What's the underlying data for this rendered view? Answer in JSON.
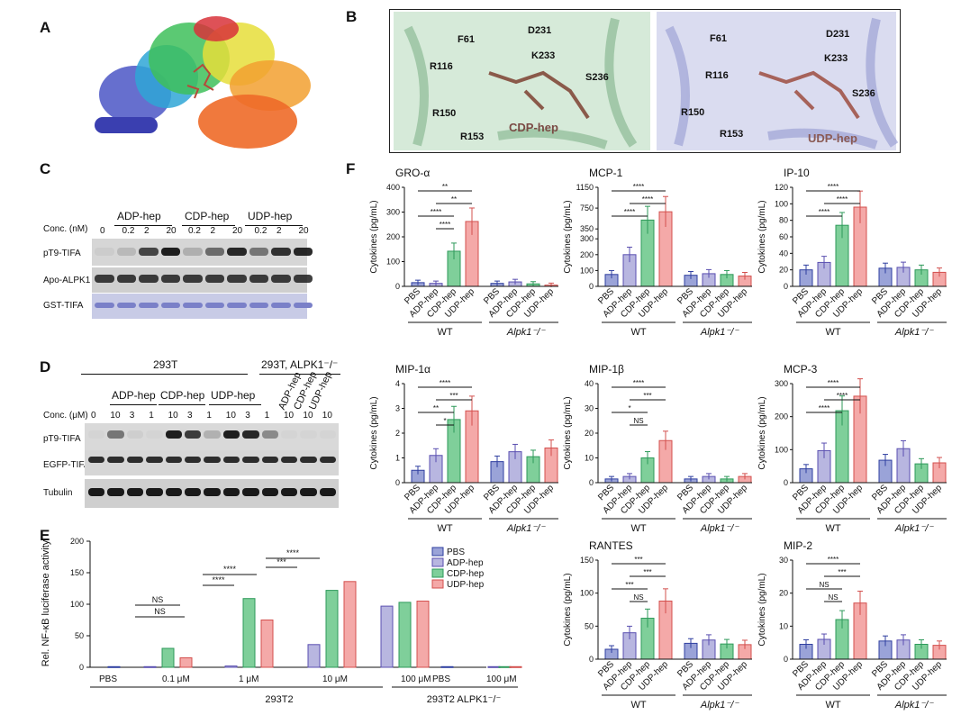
{
  "panel_letters": {
    "a": "A",
    "b": "B",
    "c": "C",
    "d": "D",
    "e": "E",
    "f": "F"
  },
  "panel_b": {
    "left_residues": [
      "F61",
      "D231",
      "K233",
      "R116",
      "S236",
      "R150",
      "R153"
    ],
    "left_ligand": "CDP-hep",
    "right_residues": [
      "F61",
      "D231",
      "R116",
      "K233",
      "S236",
      "R150",
      "R153"
    ],
    "right_ligand": "UDP-hep"
  },
  "panel_c": {
    "groups": [
      "ADP-hep",
      "CDP-hep",
      "UDP-hep"
    ],
    "conc_label": "Conc. (nM)",
    "conc_values": [
      "0",
      "0.2",
      "2",
      "20",
      "0.2",
      "2",
      "20",
      "0.2",
      "2",
      "20"
    ],
    "rows": [
      "pT9-TIFA",
      "Apo-ALPK1",
      "GST-TIFA"
    ]
  },
  "panel_d": {
    "cell_lines": [
      "293T",
      "293T, ALPK1⁻/⁻"
    ],
    "groups": [
      "ADP-hep",
      "CDP-hep",
      "UDP-hep"
    ],
    "ko_groups": [
      "ADP-hep",
      "CDP-hep",
      "UDP-hep"
    ],
    "conc_label": "Conc. (μM)",
    "conc_values": [
      "0",
      "10",
      "3",
      "1",
      "10",
      "3",
      "1",
      "10",
      "3",
      "1",
      "10",
      "10",
      "10"
    ],
    "rows": [
      "pT9-TIFA",
      "EGFP-TIFA",
      "Tubulin"
    ]
  },
  "panel_e": {
    "ylabel": "Rel. NF-κB luciferase activity",
    "legend": [
      "PBS",
      "ADP-hep",
      "CDP-hep",
      "UDP-hep"
    ],
    "xgroups": [
      "PBS",
      "0.1 μM",
      "1 μM",
      "10 μM",
      "100 μM",
      "PBS",
      "100 μM"
    ],
    "cell_lines": [
      "293T2",
      "293T2 ALPK1⁻/⁻"
    ],
    "sig": [
      "NS",
      "NS",
      "****",
      "****",
      "***",
      "****"
    ]
  },
  "colors": {
    "PBS": "#9aa3d8",
    "ADP": "#b8b6e0",
    "CDP": "#7fcf9a",
    "UDP": "#f4a9a8",
    "PBSe": "#2f3fa0",
    "ADPe": "#5a4fb0",
    "CDPe": "#2e9a5a",
    "UDPe": "#d3504e"
  },
  "chart_data": [
    {
      "type": "bar",
      "title": "Rel. NF-κB luciferase activity",
      "panel": "E",
      "series": [
        {
          "name": "PBS",
          "values": [
            1,
            null,
            null,
            null,
            null,
            1,
            null
          ]
        },
        {
          "name": "ADP-hep",
          "values": [
            null,
            1,
            2,
            36,
            97,
            null,
            1
          ]
        },
        {
          "name": "CDP-hep",
          "values": [
            null,
            30,
            109,
            122,
            103,
            null,
            1
          ]
        },
        {
          "name": "UDP-hep",
          "values": [
            null,
            15,
            75,
            136,
            105,
            null,
            1
          ]
        }
      ],
      "categories": [
        "PBS",
        "0.1 μM",
        "1 μM",
        "10 μM",
        "100 μM",
        "PBS",
        "100 μM"
      ],
      "ylim": [
        0,
        200
      ],
      "yticks": [
        0,
        50,
        100,
        150,
        200
      ]
    },
    {
      "type": "bar",
      "panel": "F",
      "title": "GRO-α",
      "ylabel": "Cytokines (pg/mL)",
      "categories": [
        "PBS",
        "ADP-hep",
        "CDP-hep",
        "UDP-hep",
        "PBS",
        "ADP-hep",
        "CDP-hep",
        "UDP-hep"
      ],
      "values": [
        15,
        12,
        142,
        262,
        12,
        18,
        10,
        5
      ],
      "ylim": [
        0,
        400
      ],
      "yticks": [
        0,
        100,
        200,
        300,
        400
      ],
      "groups": [
        "WT",
        "Alpk1⁻/⁻"
      ]
    },
    {
      "type": "bar",
      "panel": "F",
      "title": "MCP-1",
      "ylabel": "Cytokines (pg/mL)",
      "categories": [
        "PBS",
        "ADP-hep",
        "CDP-hep",
        "UDP-hep",
        "PBS",
        "ADP-hep",
        "CDP-hep",
        "UDP-hep"
      ],
      "values": [
        75,
        200,
        520,
        680,
        70,
        80,
        75,
        65
      ],
      "yticks": [
        "0",
        "100",
        "200",
        "300",
        "350",
        "750",
        "1150"
      ],
      "groups": [
        "WT",
        "Alpk1⁻/⁻"
      ]
    },
    {
      "type": "bar",
      "panel": "F",
      "title": "IP-10",
      "ylabel": "Cytokines (pg/mL)",
      "categories": [
        "PBS",
        "ADP-hep",
        "CDP-hep",
        "UDP-hep",
        "PBS",
        "ADP-hep",
        "CDP-hep",
        "UDP-hep"
      ],
      "values": [
        20,
        29,
        74,
        96,
        22,
        23,
        20,
        17
      ],
      "ylim": [
        0,
        120
      ],
      "yticks": [
        0,
        20,
        40,
        60,
        80,
        100,
        120
      ],
      "groups": [
        "WT",
        "Alpk1⁻/⁻"
      ]
    },
    {
      "type": "bar",
      "panel": "F",
      "title": "MIP-1α",
      "ylabel": "Cytokines (pg/mL)",
      "categories": [
        "PBS",
        "ADP-hep",
        "CDP-hep",
        "UDP-hep",
        "PBS",
        "ADP-hep",
        "CDP-hep",
        "UDP-hep"
      ],
      "values": [
        0.5,
        1.1,
        2.55,
        2.9,
        0.85,
        1.25,
        1.05,
        1.4
      ],
      "ylim": [
        0,
        4
      ],
      "yticks": [
        0,
        1,
        2,
        3,
        4
      ],
      "groups": [
        "WT",
        "Alpk1⁻/⁻"
      ]
    },
    {
      "type": "bar",
      "panel": "F",
      "title": "MIP-1β",
      "ylabel": "Cytokines (pg/mL)",
      "categories": [
        "PBS",
        "ADP-hep",
        "CDP-hep",
        "UDP-hep",
        "PBS",
        "ADP-hep",
        "CDP-hep",
        "UDP-hep"
      ],
      "values": [
        1.5,
        2.5,
        10,
        17,
        1.5,
        2.5,
        1.5,
        2.5
      ],
      "ylim": [
        0,
        40
      ],
      "yticks": [
        0,
        10,
        20,
        30,
        40
      ],
      "groups": [
        "WT",
        "Alpk1⁻/⁻"
      ]
    },
    {
      "type": "bar",
      "panel": "F",
      "title": "MCP-3",
      "ylabel": "Cytokines (pg/mL)",
      "categories": [
        "PBS",
        "ADP-hep",
        "CDP-hep",
        "UDP-hep",
        "PBS",
        "ADP-hep",
        "CDP-hep",
        "UDP-hep"
      ],
      "values": [
        42,
        97,
        218,
        262,
        68,
        103,
        57,
        60
      ],
      "ylim": [
        0,
        300
      ],
      "yticks": [
        0,
        100,
        200,
        300
      ],
      "groups": [
        "WT",
        "Alpk1⁻/⁻"
      ]
    },
    {
      "type": "bar",
      "panel": "F",
      "title": "RANTES",
      "ylabel": "Cytokines (pg/mL)",
      "categories": [
        "PBS",
        "ADP-hep",
        "CDP-hep",
        "UDP-hep",
        "PBS",
        "ADP-hep",
        "CDP-hep",
        "UDP-hep"
      ],
      "values": [
        15,
        40,
        62,
        88,
        24,
        29,
        23,
        22
      ],
      "ylim": [
        0,
        150
      ],
      "yticks": [
        0,
        50,
        100,
        150
      ],
      "groups": [
        "WT",
        "Alpk1⁻/⁻"
      ]
    },
    {
      "type": "bar",
      "panel": "F",
      "title": "MIP-2",
      "ylabel": "Cytokines (pg/mL)",
      "categories": [
        "PBS",
        "ADP-hep",
        "CDP-hep",
        "UDP-hep",
        "PBS",
        "ADP-hep",
        "CDP-hep",
        "UDP-hep"
      ],
      "values": [
        4.5,
        6,
        12,
        17,
        5.5,
        5.8,
        4.5,
        4.2
      ],
      "ylim": [
        0,
        30
      ],
      "yticks": [
        0,
        10,
        20,
        30
      ],
      "groups": [
        "WT",
        "Alpk1⁻/⁻"
      ]
    }
  ],
  "f_sig": [
    [
      "**",
      "**",
      "****",
      "****"
    ],
    [
      "****",
      "****",
      "****"
    ],
    [
      "****",
      "****",
      "****"
    ],
    [
      "****",
      "***",
      "**",
      "*"
    ],
    [
      "****",
      "***",
      "*",
      "NS"
    ],
    [
      "****",
      "****",
      "****"
    ],
    [
      "***",
      "***",
      "***",
      "NS"
    ],
    [
      "****",
      "***",
      "NS",
      "NS"
    ]
  ]
}
